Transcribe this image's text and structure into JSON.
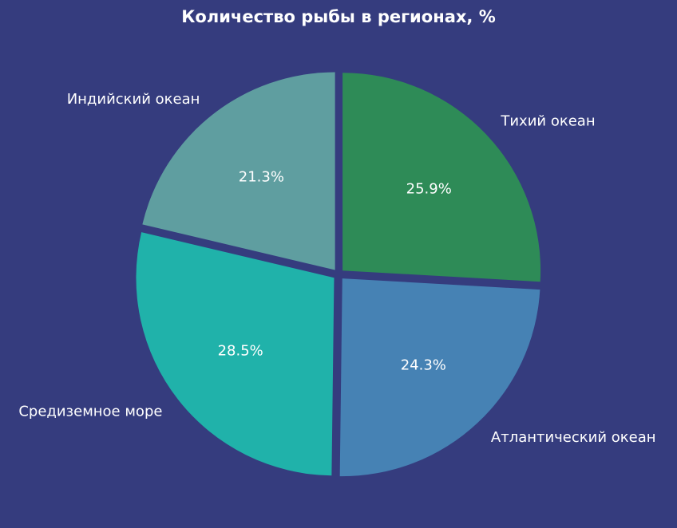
{
  "chart_data": {
    "type": "pie",
    "title": "Количество рыбы в регионах, %",
    "slices": [
      {
        "label": "Тихий океан",
        "value": 25.9,
        "pct_label": "25.9%",
        "color": "#2e8b57"
      },
      {
        "label": "Атлантический океан",
        "value": 24.3,
        "pct_label": "24.3%",
        "color": "#4682b4"
      },
      {
        "label": "Средиземное море",
        "value": 28.5,
        "pct_label": "28.5%",
        "color": "#20b2aa"
      },
      {
        "label": "Индийский океан",
        "value": 21.3,
        "pct_label": "21.3%",
        "color": "#5f9ea0"
      }
    ],
    "start_angle_deg": 90,
    "direction": "clockwise",
    "exploded": true,
    "background_color": "#353c7e"
  }
}
